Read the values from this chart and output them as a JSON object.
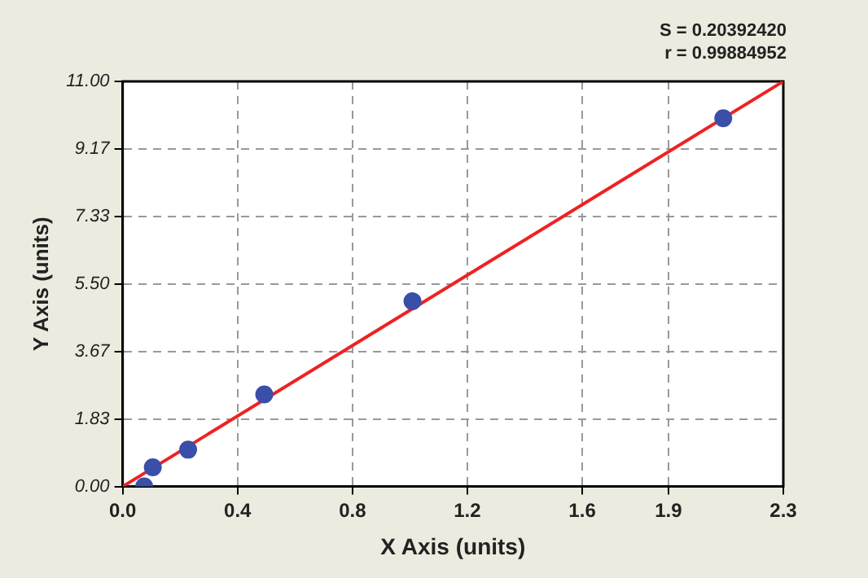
{
  "chart_data": {
    "type": "scatter",
    "xlabel": "X Axis (units)",
    "ylabel": "Y Axis (units)",
    "annotations": [
      "S = 0.20392420",
      "r = 0.99884952"
    ],
    "series": [
      {
        "color": "#3a4fa8",
        "marker": "circle",
        "x": [
          0.075,
          0.105,
          0.228,
          0.493,
          1.009,
          2.091
        ],
        "values": [
          0.0,
          0.52,
          1.0,
          2.5,
          5.03,
          10.0
        ]
      },
      {
        "type": "line",
        "color": "#ee2222",
        "x": [
          0.0,
          2.3
        ],
        "values": [
          0.0,
          11.0
        ]
      }
    ],
    "xlim": [
      0,
      2.3
    ],
    "ylim": [
      0,
      11
    ],
    "xticks": [
      {
        "value": 0,
        "label": "0.0"
      },
      0.4,
      0.8,
      1.2,
      1.6,
      1.9,
      2.3
    ],
    "yticks": [
      {
        "value": 0,
        "label": "0.00"
      },
      1.83,
      3.67,
      {
        "value": 5.5,
        "label": "5.50"
      },
      7.33,
      9.17,
      {
        "value": 11,
        "label": "11.00"
      }
    ],
    "grid": true,
    "legend": false
  }
}
